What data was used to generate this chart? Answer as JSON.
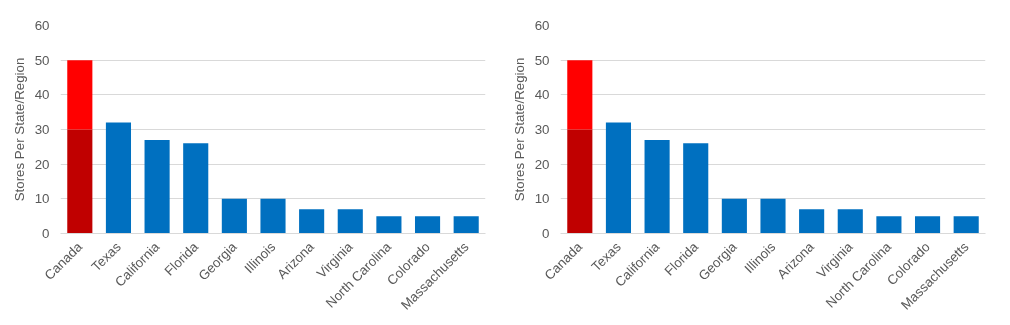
{
  "chart_data": [
    {
      "type": "bar",
      "ylabel": "Stores Per State/Region",
      "categories": [
        "Canada",
        "Texas",
        "California",
        "Florida",
        "Georgia",
        "Illinois",
        "Arizona",
        "Virginia",
        "North Carolina",
        "Colorado",
        "Massachusetts"
      ],
      "stacked": true,
      "ylim": [
        0,
        60
      ],
      "yticks": [
        0,
        10,
        20,
        30,
        40,
        50,
        60
      ],
      "grid": "y",
      "series": [
        {
          "colors": [
            "#c00000",
            "#0070c0",
            "#0070c0",
            "#0070c0",
            "#0070c0",
            "#0070c0",
            "#0070c0",
            "#0070c0",
            "#0070c0",
            "#0070c0",
            "#0070c0"
          ],
          "values": [
            30,
            32,
            27,
            26,
            10,
            10,
            7,
            7,
            5,
            5,
            5
          ]
        },
        {
          "color": "#ff0000",
          "values": [
            20,
            null,
            null,
            null,
            null,
            null,
            null,
            null,
            null,
            null,
            null
          ]
        }
      ]
    },
    {
      "type": "bar",
      "ylabel": "Stores Per State/Region",
      "categories": [
        "Canada",
        "Texas",
        "California",
        "Florida",
        "Georgia",
        "Illinois",
        "Arizona",
        "Virginia",
        "North Carolina",
        "Colorado",
        "Massachusetts"
      ],
      "stacked": true,
      "ylim": [
        0,
        60
      ],
      "yticks": [
        0,
        10,
        20,
        30,
        40,
        50,
        60
      ],
      "grid": "y",
      "series": [
        {
          "colors": [
            "#c00000",
            "#0070c0",
            "#0070c0",
            "#0070c0",
            "#0070c0",
            "#0070c0",
            "#0070c0",
            "#0070c0",
            "#0070c0",
            "#0070c0",
            "#0070c0"
          ],
          "values": [
            30,
            32,
            27,
            26,
            10,
            10,
            7,
            7,
            5,
            5,
            5
          ]
        },
        {
          "color": "#ff0000",
          "values": [
            20,
            null,
            null,
            null,
            null,
            null,
            null,
            null,
            null,
            null,
            null
          ]
        }
      ]
    }
  ]
}
